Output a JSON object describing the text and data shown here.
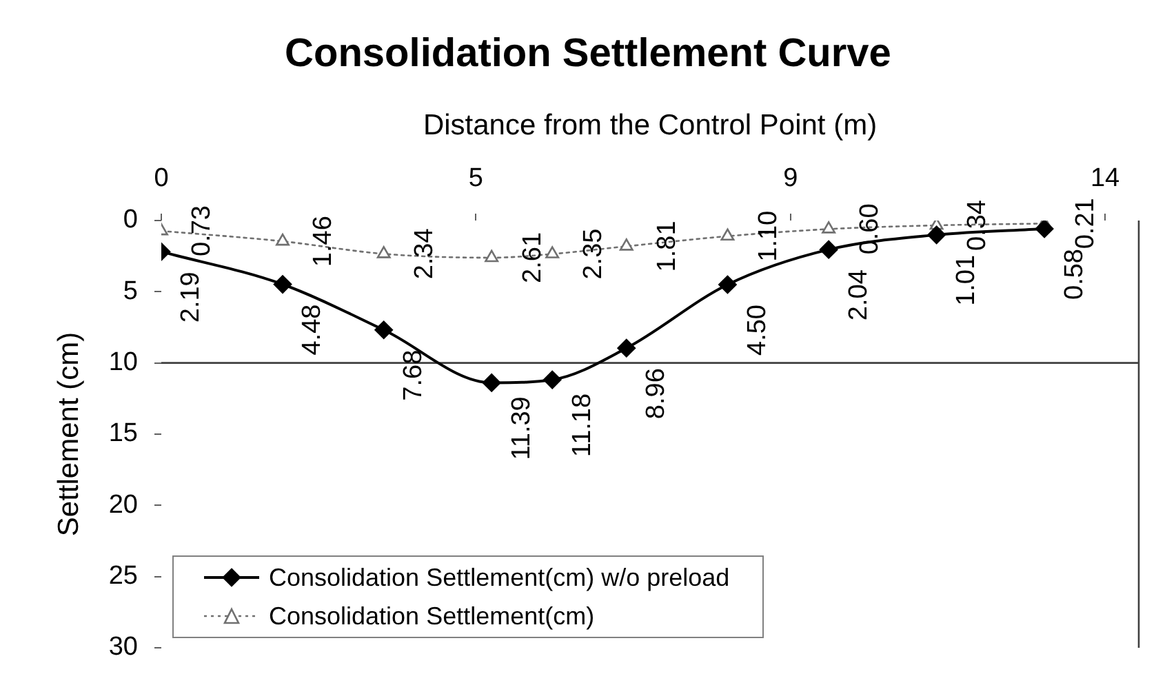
{
  "chart_data": {
    "type": "line",
    "title": "Consolidation Settlement Curve",
    "xlabel": "Distance from the Control Point (m)",
    "ylabel": "Settlement (cm)",
    "x": [
      0,
      1.8,
      3.3,
      4.9,
      5.8,
      6.9,
      8.4,
      9.9,
      11.5,
      13.1
    ],
    "series": [
      {
        "name": "Consolidation Settlement(cm) w/o preload",
        "color": "#000000",
        "marker": "diamond",
        "line_style": "solid",
        "values": [
          2.19,
          4.48,
          7.68,
          11.39,
          11.18,
          8.96,
          4.5,
          2.04,
          1.01,
          0.58
        ],
        "value_labels": [
          "2.19",
          "4.48",
          "7.68",
          "11.39",
          "11.18",
          "8.96",
          "4.50",
          "2.04",
          "1.01",
          "0.58"
        ]
      },
      {
        "name": "Consolidation Settlement(cm)",
        "color": "#707070",
        "marker": "triangle",
        "line_style": "dotted",
        "values": [
          0.73,
          1.46,
          2.34,
          2.61,
          2.35,
          1.81,
          1.1,
          0.6,
          0.34,
          0.21
        ],
        "value_labels": [
          "0.73",
          "1.46",
          "2.34",
          "2.61",
          "2.35",
          "1.81",
          "1.10",
          "0.60",
          "0.34",
          "0.21"
        ]
      }
    ],
    "xlim": [
      0,
      14.5
    ],
    "xticks": [
      0,
      {
        "value": 4.667,
        "label": "5"
      },
      {
        "value": 9.333,
        "label": "9"
      },
      14
    ],
    "ylim": [
      30,
      0
    ],
    "yticks": [
      0,
      5,
      10,
      15,
      20,
      25,
      30
    ],
    "ref_lines": [
      {
        "axis": "y",
        "value": 10,
        "color": "#404040"
      }
    ],
    "legend": "bottom left"
  }
}
